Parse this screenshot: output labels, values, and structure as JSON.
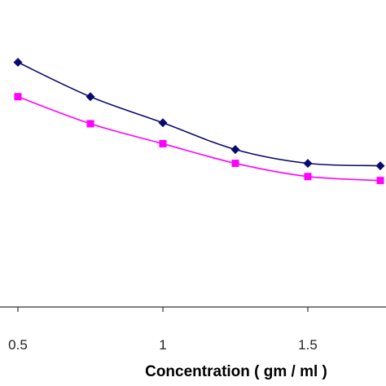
{
  "chart_data": {
    "type": "line",
    "title": "",
    "xlabel": "Concentration ( gm / ml )",
    "ylabel": "",
    "x_ticks": [
      "0.5",
      "1",
      "1.5"
    ],
    "xlim": [
      0.48,
      1.75
    ],
    "ylim": [
      0,
      1
    ],
    "grid": false,
    "series": [
      {
        "color": "#0a0a6e",
        "marker": "diamond",
        "x": [
          0.5,
          0.75,
          1.0,
          1.25,
          1.5,
          1.75
        ],
        "y": [
          0.797,
          0.685,
          0.6,
          0.513,
          0.468,
          0.46
        ]
      },
      {
        "color": "#ff00ff",
        "marker": "square",
        "x": [
          0.5,
          0.75,
          1.0,
          1.25,
          1.5,
          1.75
        ],
        "y": [
          0.685,
          0.597,
          0.532,
          0.468,
          0.425,
          0.412
        ]
      }
    ]
  }
}
